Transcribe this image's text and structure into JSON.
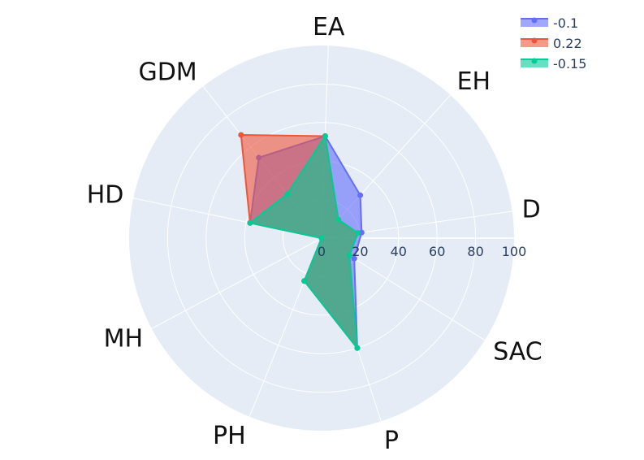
{
  "chart_data": {
    "type": "radar",
    "categories": [
      "D",
      "EA",
      "EH",
      "GDM",
      "HD",
      "MH",
      "P",
      "PH",
      "SAC"
    ],
    "axis_order_counterclockwise_from_east": [
      "D",
      "EH",
      "EA",
      "GDM",
      "HD",
      "MH",
      "PH",
      "P",
      "SAC"
    ],
    "radial_range": [
      0,
      100
    ],
    "radial_ticks": [
      "0",
      "20",
      "40",
      "60",
      "80",
      "100"
    ],
    "grid": true,
    "legend_position": "top-right",
    "series": [
      {
        "name": "-0.1",
        "color": "#636efa",
        "values": {
          "D": 21,
          "EH": 30,
          "EA": 53,
          "GDM": 53,
          "HD": 38,
          "MH": 0,
          "PH": 24,
          "P": 60,
          "SAC": 20
        }
      },
      {
        "name": "0.22",
        "color": "#ef553b",
        "values": {
          "D": 19,
          "EH": 13,
          "EA": 53,
          "GDM": 68,
          "HD": 38,
          "MH": 0,
          "PH": 24,
          "P": 60,
          "SAC": 17
        }
      },
      {
        "name": "-0.15",
        "color": "#00cc96",
        "values": {
          "D": 19,
          "EH": 13,
          "EA": 53,
          "GDM": 29,
          "HD": 38,
          "MH": 0,
          "PH": 24,
          "P": 60,
          "SAC": 17
        }
      }
    ]
  }
}
